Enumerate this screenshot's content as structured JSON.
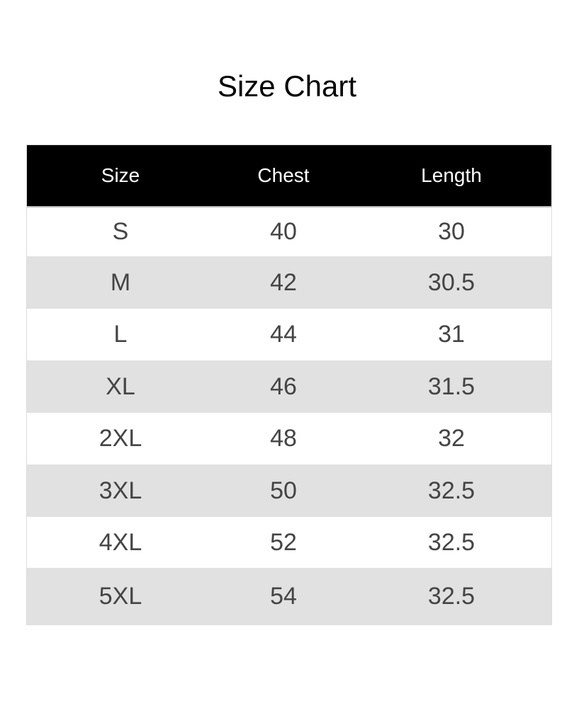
{
  "chart_data": {
    "type": "table",
    "title": "Size Chart",
    "columns": [
      "Size",
      "Chest",
      "Length"
    ],
    "rows": [
      [
        "S",
        "40",
        "30"
      ],
      [
        "M",
        "42",
        "30.5"
      ],
      [
        "L",
        "44",
        "31"
      ],
      [
        "XL",
        "46",
        "31.5"
      ],
      [
        "2XL",
        "48",
        "32"
      ],
      [
        "3XL",
        "50",
        "32.5"
      ],
      [
        "4XL",
        "52",
        "32.5"
      ],
      [
        "5XL",
        "54",
        "32.5"
      ]
    ],
    "colors": {
      "header_bg": "#000000",
      "header_text": "#ffffff",
      "alt_row": "#e1e1e1",
      "text": "#444444"
    }
  }
}
